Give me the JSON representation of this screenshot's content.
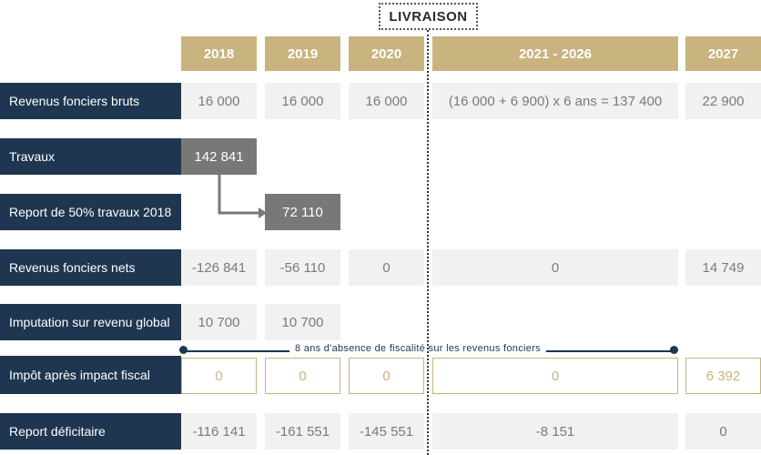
{
  "livraison": "LIVRAISON",
  "columns": [
    "2018",
    "2019",
    "2020",
    "2021 - 2026",
    "2027"
  ],
  "rows": {
    "revenus_bruts": {
      "label": "Revenus fonciers bruts",
      "values": [
        "16 000",
        "16 000",
        "16 000",
        "(16 000 + 6 900) x 6 ans = 137 400",
        "22 900"
      ]
    },
    "travaux": {
      "label": "Travaux",
      "value_2018": "142 841"
    },
    "report_travaux": {
      "label": "Report de 50% travaux 2018",
      "value_2019": "72 110"
    },
    "revenus_nets": {
      "label": "Revenus fonciers nets",
      "values": [
        "-126 841",
        "-56 110",
        "0",
        "0",
        "14 749"
      ]
    },
    "imputation": {
      "label": "Imputation sur revenu global",
      "values": [
        "10 700",
        "10 700"
      ]
    },
    "impot": {
      "label": "Impôt après impact fiscal",
      "values": [
        "0",
        "0",
        "0",
        "0",
        "6 392"
      ]
    },
    "report_deficitaire": {
      "label": "Report déficitaire",
      "values": [
        "-116 141",
        "-161 551",
        "-145 551",
        "-8 151",
        "0"
      ]
    }
  },
  "note": "8 ans d'absence de fiscalité sur les revenus fonciers",
  "colors": {
    "navy": "#1e3650",
    "gold": "#c9b37e",
    "grey": "#787878",
    "light": "#f1f1f1"
  }
}
